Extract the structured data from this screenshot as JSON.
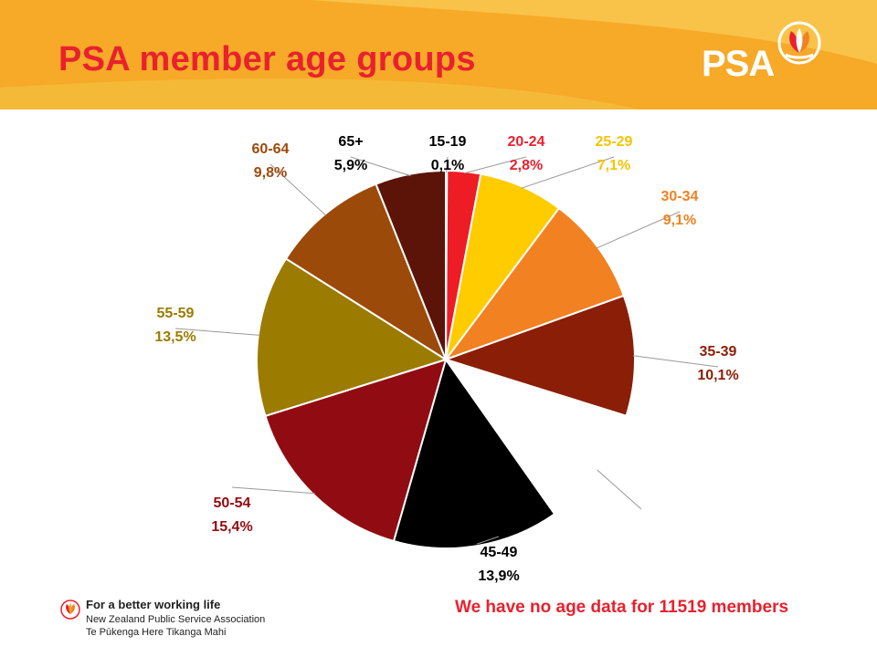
{
  "page": {
    "title": "PSA member age groups",
    "brand": "PSA",
    "footer": {
      "tagline": "For a better working life",
      "org_name": "New Zealand Public Service Association",
      "maori_name": "Te Pūkenga Here Tikanga Mahi"
    },
    "note": "We have no age data for 11519 members"
  },
  "colors": {
    "header": "#f7a928",
    "title": "#e8212e"
  },
  "chart_data": {
    "type": "pie",
    "start_angle_deg": 0,
    "direction": "clockwise",
    "slices": [
      {
        "label": "15-19",
        "value_text": "0,1%",
        "value": 0.1,
        "color": "#5c2a0a",
        "label_color": "#000000"
      },
      {
        "label": "20-24",
        "value_text": "2,8%",
        "value": 2.8,
        "color": "#ee1c25",
        "label_color": "#e8212e"
      },
      {
        "label": "25-29",
        "value_text": "7,1%",
        "value": 7.1,
        "color": "#ffcc00",
        "label_color": "#f5c400"
      },
      {
        "label": "30-34",
        "value_text": "9,1%",
        "value": 9.1,
        "color": "#f28121",
        "label_color": "#f28121"
      },
      {
        "label": "35-39",
        "value_text": "10,1%",
        "value": 10.1,
        "color": "#8b1e06",
        "label_color": "#8b1e06"
      },
      {
        "label": "",
        "value_text": "",
        "value": 10.2,
        "color": "#ffffff",
        "label_color": "#000000"
      },
      {
        "label": "45-49",
        "value_text": "13,9%",
        "value": 13.9,
        "color": "#000000",
        "label_color": "#000000"
      },
      {
        "label": "50-54",
        "value_text": "15,4%",
        "value": 15.4,
        "color": "#910c12",
        "label_color": "#910c12"
      },
      {
        "label": "55-59",
        "value_text": "13,5%",
        "value": 13.5,
        "color": "#9b7b00",
        "label_color": "#9b7b00"
      },
      {
        "label": "60-64",
        "value_text": "9,8%",
        "value": 9.8,
        "color": "#9c4a0a",
        "label_color": "#9c4a0a"
      },
      {
        "label": "65+",
        "value_text": "5,9%",
        "value": 5.9,
        "color": "#5c1408",
        "label_color": "#000000"
      }
    ]
  }
}
